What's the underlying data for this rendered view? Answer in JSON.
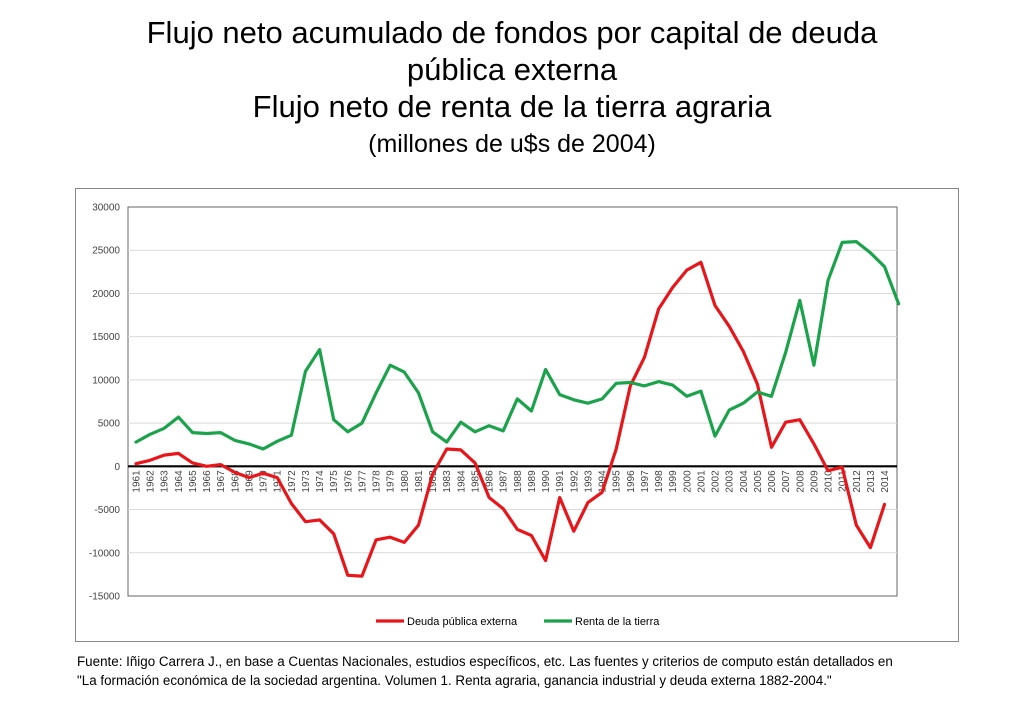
{
  "title": {
    "line1": "Flujo neto acumulado de fondos por capital de deuda",
    "line2": "pública externa",
    "line3": "Flujo neto de renta de la tierra agraria",
    "line4": "(millones de u$s de 2004)"
  },
  "footnote": {
    "line1": "Fuente: Iñigo Carrera J.,  en base a Cuentas Nacionales, estudios específicos, etc. Las fuentes y criterios de computo están detallados en",
    "line2": "\"La formación económica de la sociedad argentina. Volumen 1. Renta agraria, ganancia industrial y deuda externa 1882-2004.\""
  },
  "chart_data": {
    "type": "line",
    "ylim": [
      -15000,
      30000
    ],
    "yticks": [
      30000,
      25000,
      20000,
      15000,
      10000,
      5000,
      0,
      -5000,
      -10000,
      -15000
    ],
    "xtick_labels": [
      "1961",
      "1962",
      "1963",
      "1964",
      "1965",
      "1966",
      "1967",
      "1968",
      "1969",
      "1970",
      "1971",
      "1972",
      "1973",
      "1974",
      "1975",
      "1976",
      "1977",
      "1978",
      "1979",
      "1980",
      "1981",
      "1982",
      "1983",
      "1984",
      "1985",
      "1986",
      "1987",
      "1988",
      "1989",
      "1990",
      "1991",
      "1992",
      "1993",
      "1994",
      "1995",
      "1996",
      "1997",
      "1998",
      "1999",
      "2000",
      "2001",
      "2002",
      "2003",
      "2004",
      "2005",
      "2006",
      "2007",
      "2008",
      "2009",
      "2010",
      "2011",
      "2012",
      "2013",
      "2014"
    ],
    "x": [
      1961,
      1962,
      1963,
      1964,
      1965,
      1966,
      1967,
      1968,
      1969,
      1970,
      1971,
      1972,
      1973,
      1974,
      1975,
      1976,
      1977,
      1978,
      1979,
      1980,
      1981,
      1982,
      1983,
      1984,
      1985,
      1986,
      1987,
      1988,
      1989,
      1990,
      1991,
      1992,
      1993,
      1994,
      1995,
      1996,
      1997,
      1998,
      1999,
      2000,
      2001,
      2002,
      2003,
      2004,
      2005,
      2006,
      2007,
      2008,
      2009,
      2010,
      2011,
      2012,
      2013,
      2014,
      2015
    ],
    "legend_position": "bottom",
    "grid": true,
    "series": [
      {
        "name": "Deuda pública externa",
        "color": "#e8161a",
        "values": [
          300,
          700,
          1300,
          1500,
          400,
          0,
          200,
          -700,
          -1300,
          -800,
          -1300,
          -4300,
          -6400,
          -6200,
          -7800,
          -12600,
          -12700,
          -8500,
          -8200,
          -8800,
          -6800,
          -900,
          2000,
          1900,
          400,
          -3600,
          -4900,
          -7300,
          -8000,
          -10900,
          -3600,
          -7500,
          -4200,
          -3000,
          2000,
          9300,
          12600,
          18200,
          20700,
          22700,
          23600,
          18600,
          16200,
          13300,
          9500,
          2200,
          5100,
          5400,
          2600,
          -500,
          -100,
          -6800,
          -9400,
          -4400,
          null
        ]
      },
      {
        "name": "Renta de la tierra",
        "color": "#1aa34a",
        "values": [
          2800,
          3700,
          4400,
          5700,
          3900,
          3800,
          3900,
          3000,
          2600,
          2000,
          2900,
          3600,
          11000,
          13500,
          5400,
          4000,
          5000,
          8500,
          11700,
          10900,
          8500,
          4000,
          2800,
          5100,
          4000,
          4700,
          4100,
          7800,
          6400,
          11200,
          8300,
          7700,
          7300,
          7800,
          9600,
          9700,
          9300,
          9800,
          9400,
          8100,
          8700,
          3500,
          6500,
          7300,
          8600,
          8100,
          13200,
          19200,
          11700,
          21500,
          25900,
          26000,
          24700,
          23100,
          18800
        ]
      }
    ]
  }
}
